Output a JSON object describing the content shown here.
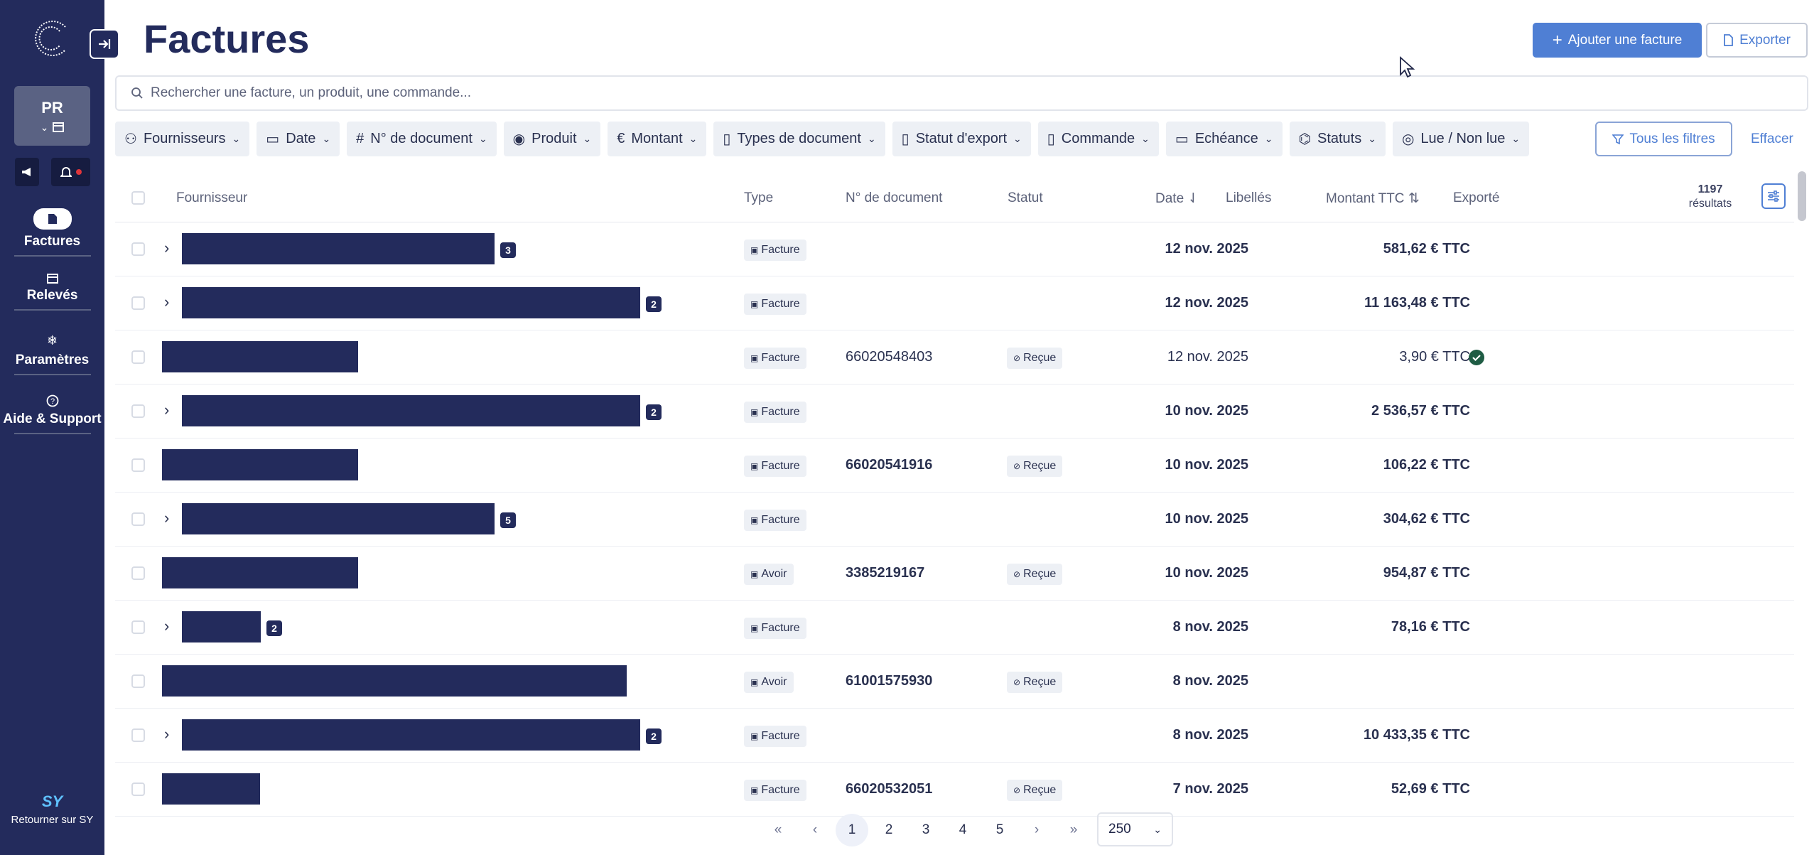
{
  "sidebar": {
    "org": {
      "initials": "PR"
    },
    "nav": [
      {
        "label": "Factures",
        "icon": "invoice-icon",
        "active": true
      },
      {
        "label": "Relevés",
        "icon": "calendar-icon",
        "active": false
      },
      {
        "label": "Paramètres",
        "icon": "gear-icon",
        "active": false
      },
      {
        "label": "Aide & Support",
        "icon": "help-icon",
        "active": false
      }
    ],
    "back": {
      "logo": "SY",
      "label": "Retourner sur SY"
    }
  },
  "header": {
    "title": "Factures",
    "add_label": "Ajouter une facture",
    "export_label": "Exporter"
  },
  "search": {
    "placeholder": "Rechercher une facture, un produit, une commande..."
  },
  "filters": {
    "chips": [
      {
        "label": "Fournisseurs",
        "icon": "user-icon"
      },
      {
        "label": "Date",
        "icon": "calendar-icon"
      },
      {
        "label": "N° de document",
        "icon": "hash-icon"
      },
      {
        "label": "Produit",
        "icon": "product-icon"
      },
      {
        "label": "Montant",
        "icon": "euro-icon"
      },
      {
        "label": "Types de document",
        "icon": "document-icon"
      },
      {
        "label": "Statut d'export",
        "icon": "export-status-icon"
      },
      {
        "label": "Commande",
        "icon": "document-icon"
      },
      {
        "label": "Echéance",
        "icon": "calendar-icon"
      },
      {
        "label": "Statuts",
        "icon": "tag-icon"
      },
      {
        "label": "Lue / Non lue",
        "icon": "eye-icon"
      }
    ],
    "all_label": "Tous les filtres",
    "clear_label": "Effacer"
  },
  "table": {
    "columns": {
      "supplier": "Fournisseur",
      "type": "Type",
      "doc": "N° de document",
      "status": "Statut",
      "date": "Date",
      "labels": "Libellés",
      "amount": "Montant TTC",
      "exported": "Exporté"
    },
    "results_count": "1197",
    "results_label": "résultats",
    "rows": [
      {
        "expandable": true,
        "count": "3",
        "type": "Facture",
        "doc": "",
        "status": "",
        "date": "12 nov. 2025",
        "amount": "581,62 € TTC",
        "exported": false,
        "bold": true
      },
      {
        "expandable": true,
        "count": "2",
        "type": "Facture",
        "doc": "",
        "status": "",
        "date": "12 nov. 2025",
        "amount": "11 163,48 € TTC",
        "exported": false,
        "bold": true
      },
      {
        "expandable": false,
        "count": "",
        "type": "Facture",
        "doc": "66020548403",
        "status": "Reçue",
        "date": "12 nov. 2025",
        "amount": "3,90 € TTC",
        "exported": true,
        "bold": false
      },
      {
        "expandable": true,
        "count": "2",
        "type": "Facture",
        "doc": "",
        "status": "",
        "date": "10 nov. 2025",
        "amount": "2 536,57 € TTC",
        "exported": false,
        "bold": true
      },
      {
        "expandable": false,
        "count": "",
        "type": "Facture",
        "doc": "66020541916",
        "status": "Reçue",
        "date": "10 nov. 2025",
        "amount": "106,22 € TTC",
        "exported": false,
        "bold": true
      },
      {
        "expandable": true,
        "count": "5",
        "type": "Facture",
        "doc": "",
        "status": "",
        "date": "10 nov. 2025",
        "amount": "304,62 € TTC",
        "exported": false,
        "bold": true
      },
      {
        "expandable": false,
        "count": "",
        "type": "Avoir",
        "doc": "3385219167",
        "status": "Reçue",
        "date": "10 nov. 2025",
        "amount": "954,87 € TTC",
        "exported": false,
        "bold": true
      },
      {
        "expandable": true,
        "count": "2",
        "type": "Facture",
        "doc": "",
        "status": "",
        "date": "8 nov. 2025",
        "amount": "78,16 € TTC",
        "exported": false,
        "bold": true
      },
      {
        "expandable": false,
        "count": "",
        "type": "Avoir",
        "doc": "61001575930",
        "status": "Reçue",
        "date": "8 nov. 2025",
        "amount": "",
        "exported": false,
        "bold": true
      },
      {
        "expandable": true,
        "count": "2",
        "type": "Facture",
        "doc": "",
        "status": "",
        "date": "8 nov. 2025",
        "amount": "10 433,35 € TTC",
        "exported": false,
        "bold": true
      },
      {
        "expandable": false,
        "count": "",
        "type": "Facture",
        "doc": "66020532051",
        "status": "Reçue",
        "date": "7 nov. 2025",
        "amount": "52,69 € TTC",
        "exported": false,
        "bold": true
      }
    ]
  },
  "pagination": {
    "first": "«",
    "prev": "‹",
    "pages": [
      "1",
      "2",
      "3",
      "4",
      "5"
    ],
    "current": "1",
    "next": "›",
    "last": "»",
    "per_page": "250"
  },
  "colors": {
    "sidebar": "#232b5c",
    "accent": "#4f7fd4",
    "exported": "#1f5c44"
  }
}
